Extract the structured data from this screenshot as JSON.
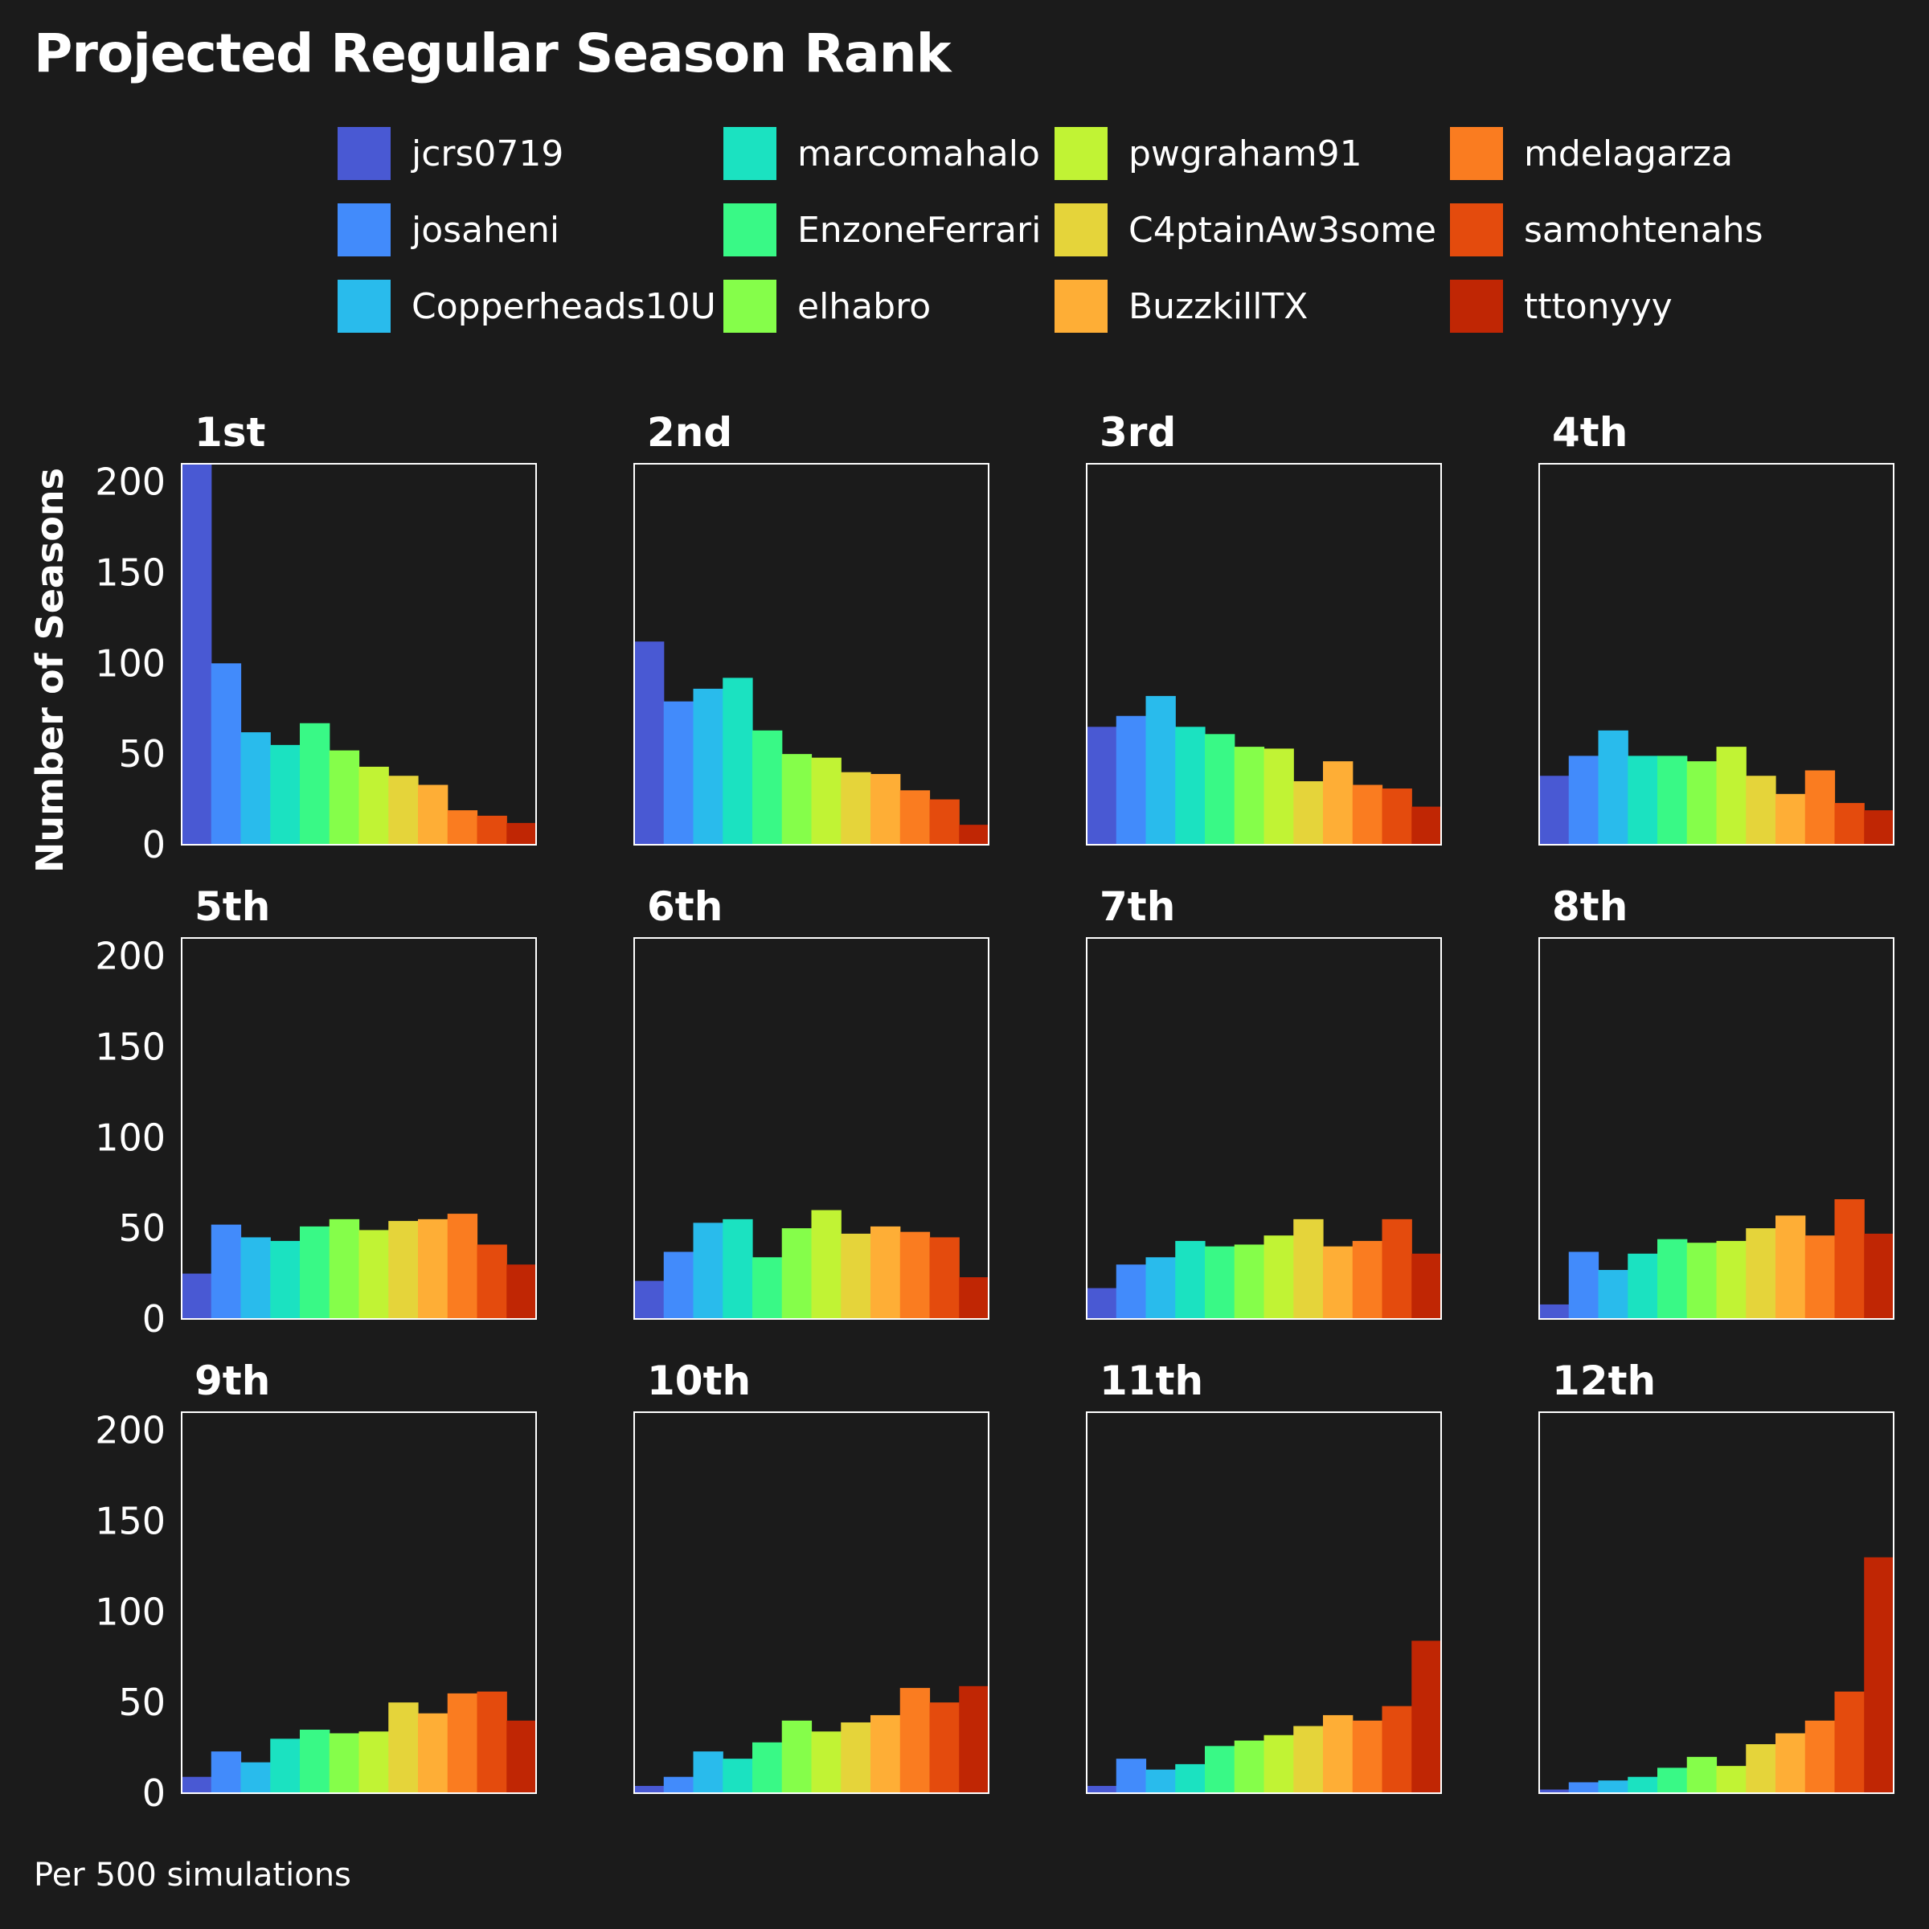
{
  "footnote": "Per 500 simulations",
  "chart_data": {
    "type": "bar",
    "title": "Projected Regular Season Rank",
    "ylabel": "Number of Seasons",
    "xlabel": "",
    "ylim": [
      0,
      210
    ],
    "yticks": [
      0,
      50,
      100,
      150,
      200
    ],
    "legend_position": "top",
    "series_names": [
      "jcrs0719",
      "josaheni",
      "Copperheads10U",
      "marcomahalo",
      "EnzoneFerrari",
      "elhabro",
      "pwgraham91",
      "C4ptainAw3some",
      "BuzzkillTX",
      "mdelagarza",
      "samohtenahs",
      "tttonyyy"
    ],
    "colors": [
      "#4959d3",
      "#428bfb",
      "#29bbec",
      "#1be2c1",
      "#39f986",
      "#85fe4a",
      "#c1f334",
      "#e5d43a",
      "#feae36",
      "#fa7c20",
      "#e44b0d",
      "#c02604"
    ],
    "panels": [
      {
        "label": "1st",
        "values": [
          210,
          100,
          62,
          55,
          67,
          52,
          43,
          38,
          33,
          19,
          16,
          12
        ]
      },
      {
        "label": "2nd",
        "values": [
          112,
          79,
          86,
          92,
          63,
          50,
          48,
          40,
          39,
          30,
          25,
          11
        ]
      },
      {
        "label": "3rd",
        "values": [
          65,
          71,
          82,
          65,
          61,
          54,
          53,
          35,
          46,
          33,
          31,
          21
        ]
      },
      {
        "label": "4th",
        "values": [
          38,
          49,
          63,
          49,
          49,
          46,
          54,
          38,
          28,
          41,
          23,
          19
        ]
      },
      {
        "label": "5th",
        "values": [
          25,
          52,
          45,
          43,
          51,
          55,
          49,
          54,
          55,
          58,
          41,
          30
        ]
      },
      {
        "label": "6th",
        "values": [
          21,
          37,
          53,
          55,
          34,
          50,
          60,
          47,
          51,
          48,
          45,
          23
        ]
      },
      {
        "label": "7th",
        "values": [
          17,
          30,
          34,
          43,
          40,
          41,
          46,
          55,
          40,
          43,
          55,
          36
        ]
      },
      {
        "label": "8th",
        "values": [
          8,
          37,
          27,
          36,
          44,
          42,
          43,
          50,
          57,
          46,
          66,
          47
        ]
      },
      {
        "label": "9th",
        "values": [
          9,
          23,
          17,
          30,
          35,
          33,
          34,
          50,
          44,
          55,
          56,
          40
        ]
      },
      {
        "label": "10th",
        "values": [
          4,
          9,
          23,
          19,
          28,
          40,
          34,
          39,
          43,
          58,
          50,
          59
        ]
      },
      {
        "label": "11th",
        "values": [
          4,
          19,
          13,
          16,
          26,
          29,
          32,
          37,
          43,
          40,
          48,
          84
        ]
      },
      {
        "label": "12th",
        "values": [
          2,
          6,
          7,
          9,
          14,
          20,
          15,
          27,
          33,
          40,
          56,
          130
        ]
      }
    ]
  }
}
